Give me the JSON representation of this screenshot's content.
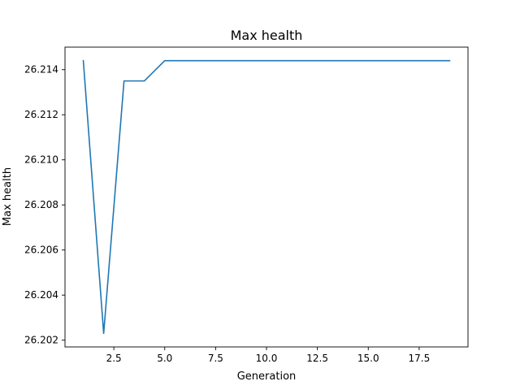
{
  "chart_data": {
    "type": "line",
    "title": "Max health",
    "xlabel": "Generation",
    "ylabel": "Max health",
    "xlim": [
      0.1,
      19.9
    ],
    "ylim": [
      26.2017,
      26.215
    ],
    "x_ticks": [
      2.5,
      5.0,
      7.5,
      10.0,
      12.5,
      15.0,
      17.5
    ],
    "x_tick_labels": [
      "2.5",
      "5.0",
      "7.5",
      "10.0",
      "12.5",
      "15.0",
      "17.5"
    ],
    "y_ticks": [
      26.202,
      26.204,
      26.206,
      26.208,
      26.21,
      26.212,
      26.214
    ],
    "y_tick_labels": [
      "26.202",
      "26.204",
      "26.206",
      "26.208",
      "26.210",
      "26.212",
      "26.214"
    ],
    "grid": false,
    "series": [
      {
        "color": "#1f77b4",
        "x": [
          1,
          2,
          3,
          4,
          5,
          6,
          7,
          8,
          9,
          10,
          11,
          12,
          13,
          14,
          15,
          16,
          17,
          18,
          19
        ],
        "y": [
          26.2144,
          26.2023,
          26.2135,
          26.2135,
          26.2144,
          26.2144,
          26.2144,
          26.2144,
          26.2144,
          26.2144,
          26.2144,
          26.2144,
          26.2144,
          26.2144,
          26.2144,
          26.2144,
          26.2144,
          26.2144,
          26.2144
        ]
      }
    ]
  }
}
